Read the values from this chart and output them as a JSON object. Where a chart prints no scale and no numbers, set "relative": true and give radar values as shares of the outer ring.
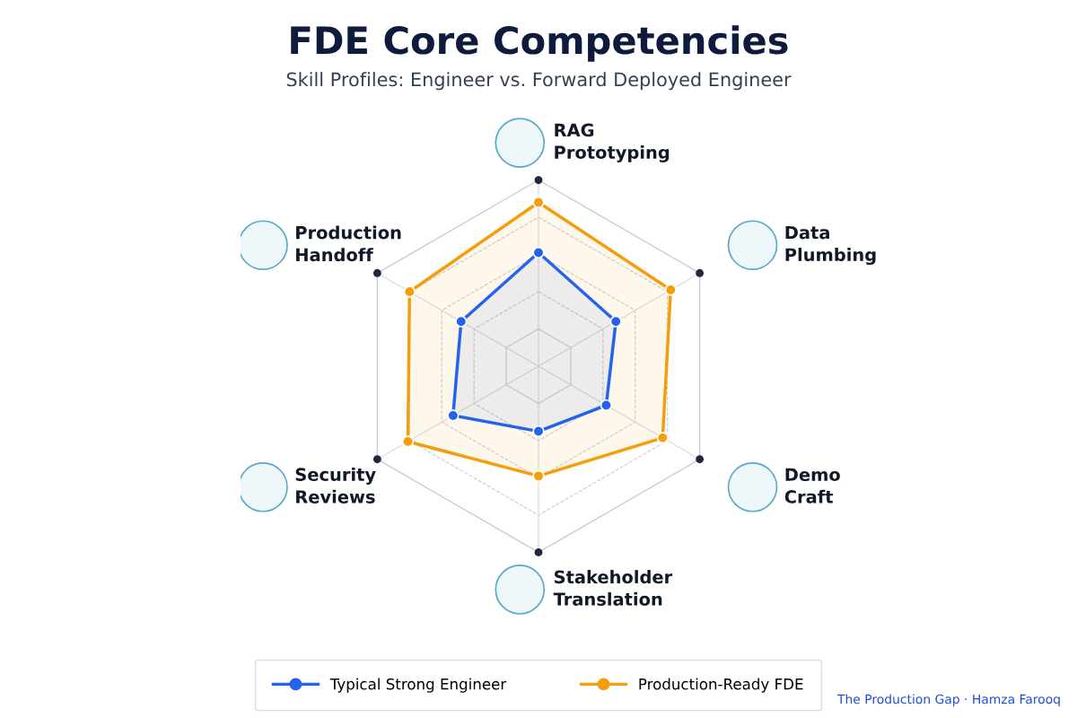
{
  "chart_data": {
    "type": "radar",
    "title": "FDE Core Competencies",
    "subtitle": "Skill Profiles: Engineer vs. Forward Deployed Engineer",
    "categories": [
      "RAG\nPrototyping",
      "Data\nPlumbing",
      "Demo\nCraft",
      "Stakeholder\nTranslation",
      "Security\nReviews",
      "Production\nHandoff"
    ],
    "relative": true,
    "marker": "circle",
    "legend": "bottom",
    "series": [
      {
        "name": "Typical Strong Engineer",
        "color": "#2563eb",
        "values": [
          0.61,
          0.48,
          0.42,
          0.35,
          0.53,
          0.48
        ]
      },
      {
        "name": "Production-Ready FDE",
        "color": "#f59e0b",
        "values": [
          0.88,
          0.82,
          0.77,
          0.59,
          0.81,
          0.8
        ]
      }
    ],
    "annotations": [
      "The Production Gap · Hamza Farooq"
    ]
  }
}
